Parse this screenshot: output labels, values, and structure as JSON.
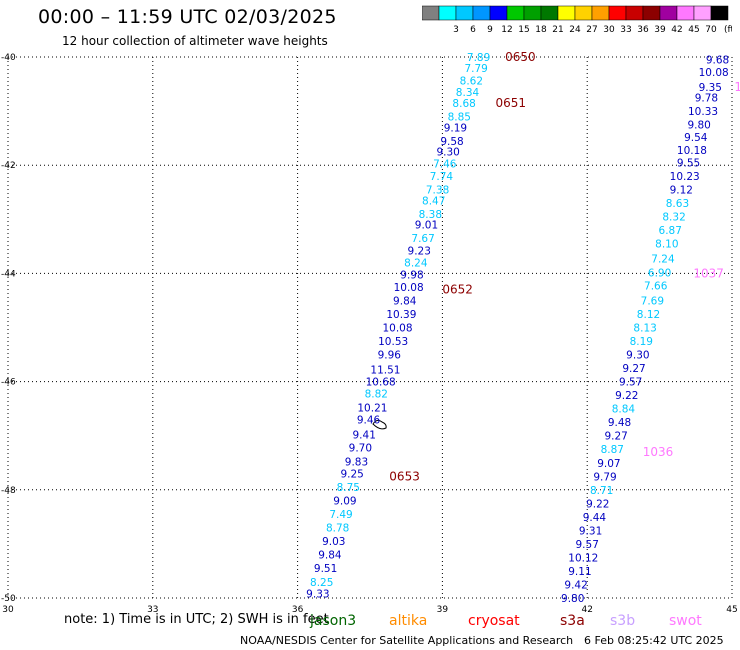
{
  "header": {
    "title": "00:00 – 11:59 UTC 02/03/2025",
    "subtitle": "12 hour collection of altimeter wave heights"
  },
  "legend": {
    "unit": "(ft)",
    "stops": [
      {
        "label": "",
        "color": "#808080"
      },
      {
        "label": "3",
        "color": "#00ffff"
      },
      {
        "label": "6",
        "color": "#00c8ff"
      },
      {
        "label": "9",
        "color": "#0096ff"
      },
      {
        "label": "12",
        "color": "#0000ff"
      },
      {
        "label": "15",
        "color": "#00c800"
      },
      {
        "label": "18",
        "color": "#00a000"
      },
      {
        "label": "21",
        "color": "#007800"
      },
      {
        "label": "24",
        "color": "#ffff00"
      },
      {
        "label": "27",
        "color": "#ffd200"
      },
      {
        "label": "30",
        "color": "#ffa000"
      },
      {
        "label": "33",
        "color": "#ff0000"
      },
      {
        "label": "36",
        "color": "#c80000"
      },
      {
        "label": "39",
        "color": "#8c0000"
      },
      {
        "label": "42",
        "color": "#a000a0"
      },
      {
        "label": "45",
        "color": "#ff78ff"
      },
      {
        "label": "70",
        "color": "#ffa0ff"
      },
      {
        "label": "",
        "color": "#000000"
      }
    ]
  },
  "map": {
    "lon_range": [
      30,
      45
    ],
    "lat_range": [
      -50,
      -40
    ],
    "lon_ticks": [
      "30",
      "33",
      "36",
      "39",
      "42",
      "45"
    ],
    "lat_ticks": [
      "-40",
      "-42",
      "-44",
      "-46",
      "-48",
      "-50"
    ],
    "tracks": [
      {
        "color": "#00c8ff",
        "alt_color": "#0000c0",
        "points": [
          {
            "lon": 39.75,
            "lat": -40.0,
            "v": "7.89",
            "c": 0
          },
          {
            "lon": 39.7,
            "lat": -40.2,
            "v": "7.79",
            "c": 0
          },
          {
            "lon": 39.6,
            "lat": -40.43,
            "v": "8.62",
            "c": 0
          },
          {
            "lon": 39.52,
            "lat": -40.65,
            "v": "8.34",
            "c": 0
          },
          {
            "lon": 39.45,
            "lat": -40.85,
            "v": "8.68",
            "c": 0
          },
          {
            "lon": 39.35,
            "lat": -41.1,
            "v": "8.85",
            "c": 0
          },
          {
            "lon": 39.27,
            "lat": -41.3,
            "v": "9.19",
            "c": 1
          },
          {
            "lon": 39.2,
            "lat": -41.55,
            "v": "9.58",
            "c": 1
          },
          {
            "lon": 39.12,
            "lat": -41.75,
            "v": "9.30",
            "c": 1
          },
          {
            "lon": 39.05,
            "lat": -41.97,
            "v": "7.46",
            "c": 0
          },
          {
            "lon": 38.98,
            "lat": -42.2,
            "v": "7.74",
            "c": 0
          },
          {
            "lon": 38.9,
            "lat": -42.45,
            "v": "7.38",
            "c": 0
          },
          {
            "lon": 38.82,
            "lat": -42.65,
            "v": "8.47",
            "c": 0
          },
          {
            "lon": 38.75,
            "lat": -42.9,
            "v": "8.38",
            "c": 0
          },
          {
            "lon": 38.67,
            "lat": -43.1,
            "v": "9.01",
            "c": 1
          },
          {
            "lon": 38.6,
            "lat": -43.35,
            "v": "7.67",
            "c": 0
          },
          {
            "lon": 38.52,
            "lat": -43.58,
            "v": "9.23",
            "c": 1
          },
          {
            "lon": 38.45,
            "lat": -43.8,
            "v": "8.24",
            "c": 0
          },
          {
            "lon": 38.37,
            "lat": -44.02,
            "v": "9.98",
            "c": 1
          },
          {
            "lon": 38.3,
            "lat": -44.25,
            "v": "10.08",
            "c": 1
          },
          {
            "lon": 38.22,
            "lat": -44.5,
            "v": "9.84",
            "c": 1
          },
          {
            "lon": 38.15,
            "lat": -44.75,
            "v": "10.39",
            "c": 1
          },
          {
            "lon": 38.07,
            "lat": -45.0,
            "v": "10.08",
            "c": 1
          },
          {
            "lon": 37.98,
            "lat": -45.25,
            "v": "10.53",
            "c": 1
          },
          {
            "lon": 37.9,
            "lat": -45.5,
            "v": "9.96",
            "c": 1
          },
          {
            "lon": 37.82,
            "lat": -45.78,
            "v": "11.51",
            "c": 1
          },
          {
            "lon": 37.72,
            "lat": -46.0,
            "v": "10.68",
            "c": 1
          },
          {
            "lon": 37.63,
            "lat": -46.22,
            "v": "8.82",
            "c": 0
          },
          {
            "lon": 37.55,
            "lat": -46.48,
            "v": "10.21",
            "c": 1
          },
          {
            "lon": 37.47,
            "lat": -46.7,
            "v": "9.46",
            "c": 1
          },
          {
            "lon": 37.38,
            "lat": -46.98,
            "v": "9.41",
            "c": 1
          },
          {
            "lon": 37.3,
            "lat": -47.22,
            "v": "9.70",
            "c": 1
          },
          {
            "lon": 37.22,
            "lat": -47.48,
            "v": "9.83",
            "c": 1
          },
          {
            "lon": 37.13,
            "lat": -47.7,
            "v": "9.25",
            "c": 1
          },
          {
            "lon": 37.05,
            "lat": -47.95,
            "v": "8.75",
            "c": 0
          },
          {
            "lon": 36.98,
            "lat": -48.2,
            "v": "9.09",
            "c": 1
          },
          {
            "lon": 36.9,
            "lat": -48.45,
            "v": "7.49",
            "c": 0
          },
          {
            "lon": 36.83,
            "lat": -48.7,
            "v": "8.78",
            "c": 0
          },
          {
            "lon": 36.75,
            "lat": -48.95,
            "v": "9.03",
            "c": 1
          },
          {
            "lon": 36.67,
            "lat": -49.2,
            "v": "9.84",
            "c": 1
          },
          {
            "lon": 36.58,
            "lat": -49.45,
            "v": "9.51",
            "c": 1
          },
          {
            "lon": 36.5,
            "lat": -49.7,
            "v": "8.25",
            "c": 0
          },
          {
            "lon": 36.42,
            "lat": -49.92,
            "v": "9.33",
            "c": 1
          }
        ]
      },
      {
        "color": "#00c8ff",
        "alt_color": "#0000c0",
        "points": [
          {
            "lon": 44.7,
            "lat": -40.05,
            "v": "9.68",
            "c": 1
          },
          {
            "lon": 44.62,
            "lat": -40.28,
            "v": "10.08",
            "c": 1
          },
          {
            "lon": 44.55,
            "lat": -40.55,
            "v": "9.35",
            "c": 1
          },
          {
            "lon": 44.47,
            "lat": -40.75,
            "v": "9.78",
            "c": 1
          },
          {
            "lon": 44.4,
            "lat": -41.0,
            "v": "10.33",
            "c": 1
          },
          {
            "lon": 44.32,
            "lat": -41.25,
            "v": "9.80",
            "c": 1
          },
          {
            "lon": 44.25,
            "lat": -41.48,
            "v": "9.54",
            "c": 1
          },
          {
            "lon": 44.17,
            "lat": -41.72,
            "v": "10.18",
            "c": 1
          },
          {
            "lon": 44.1,
            "lat": -41.95,
            "v": "9.55",
            "c": 1
          },
          {
            "lon": 44.02,
            "lat": -42.2,
            "v": "10.23",
            "c": 1
          },
          {
            "lon": 43.95,
            "lat": -42.45,
            "v": "9.12",
            "c": 1
          },
          {
            "lon": 43.87,
            "lat": -42.7,
            "v": "8.63",
            "c": 0
          },
          {
            "lon": 43.8,
            "lat": -42.95,
            "v": "8.32",
            "c": 0
          },
          {
            "lon": 43.72,
            "lat": -43.2,
            "v": "6.87",
            "c": 0
          },
          {
            "lon": 43.65,
            "lat": -43.45,
            "v": "8.10",
            "c": 0
          },
          {
            "lon": 43.57,
            "lat": -43.72,
            "v": "7.24",
            "c": 0
          },
          {
            "lon": 43.5,
            "lat": -43.98,
            "v": "6.90",
            "c": 0
          },
          {
            "lon": 43.42,
            "lat": -44.22,
            "v": "7.66",
            "c": 0
          },
          {
            "lon": 43.35,
            "lat": -44.5,
            "v": "7.69",
            "c": 0
          },
          {
            "lon": 43.27,
            "lat": -44.75,
            "v": "8.12",
            "c": 0
          },
          {
            "lon": 43.2,
            "lat": -45.0,
            "v": "8.13",
            "c": 0
          },
          {
            "lon": 43.12,
            "lat": -45.25,
            "v": "8.19",
            "c": 0
          },
          {
            "lon": 43.05,
            "lat": -45.5,
            "v": "9.30",
            "c": 1
          },
          {
            "lon": 42.97,
            "lat": -45.75,
            "v": "9.27",
            "c": 1
          },
          {
            "lon": 42.9,
            "lat": -46.0,
            "v": "9.57",
            "c": 1
          },
          {
            "lon": 42.82,
            "lat": -46.25,
            "v": "9.22",
            "c": 1
          },
          {
            "lon": 42.75,
            "lat": -46.5,
            "v": "8.84",
            "c": 0
          },
          {
            "lon": 42.67,
            "lat": -46.75,
            "v": "9.48",
            "c": 1
          },
          {
            "lon": 42.6,
            "lat": -47.0,
            "v": "9.27",
            "c": 1
          },
          {
            "lon": 42.52,
            "lat": -47.25,
            "v": "8.87",
            "c": 0
          },
          {
            "lon": 42.45,
            "lat": -47.5,
            "v": "9.07",
            "c": 1
          },
          {
            "lon": 42.37,
            "lat": -47.75,
            "v": "9.79",
            "c": 1
          },
          {
            "lon": 42.3,
            "lat": -48.0,
            "v": "8.71",
            "c": 0
          },
          {
            "lon": 42.22,
            "lat": -48.25,
            "v": "9.22",
            "c": 1
          },
          {
            "lon": 42.15,
            "lat": -48.5,
            "v": "9.44",
            "c": 1
          },
          {
            "lon": 42.07,
            "lat": -48.75,
            "v": "9.31",
            "c": 1
          },
          {
            "lon": 42.0,
            "lat": -49.0,
            "v": "9.57",
            "c": 1
          },
          {
            "lon": 41.92,
            "lat": -49.25,
            "v": "10.12",
            "c": 1
          },
          {
            "lon": 41.85,
            "lat": -49.5,
            "v": "9.11",
            "c": 1
          },
          {
            "lon": 41.77,
            "lat": -49.75,
            "v": "9.42",
            "c": 1
          },
          {
            "lon": 41.7,
            "lat": -50.0,
            "v": "9.80",
            "c": 1
          }
        ]
      }
    ],
    "time_labels": [
      {
        "lon": 40.3,
        "lat": -40.0,
        "text": "0650",
        "color": "#8c0000"
      },
      {
        "lon": 40.1,
        "lat": -40.85,
        "text": "0651",
        "color": "#8c0000"
      },
      {
        "lon": 39.0,
        "lat": -44.3,
        "text": "0652",
        "color": "#8c0000"
      },
      {
        "lon": 37.9,
        "lat": -47.75,
        "text": "0653",
        "color": "#8c0000"
      },
      {
        "lon": 44.2,
        "lat": -44.0,
        "text": "1037",
        "color": "#ff78ff"
      },
      {
        "lon": 43.15,
        "lat": -47.3,
        "text": "1036",
        "color": "#ff78ff"
      },
      {
        "lon": 45.05,
        "lat": -40.55,
        "text": "1",
        "color": "#ff78ff"
      }
    ]
  },
  "note": "note:  1) Time is in UTC; 2) SWH is in feet",
  "missions": [
    {
      "name": "jason3",
      "color": "#006400"
    },
    {
      "name": "altika",
      "color": "#ff8c00"
    },
    {
      "name": "cryosat",
      "color": "#ff0000"
    },
    {
      "name": "s3a",
      "color": "#8c0000"
    },
    {
      "name": "s3b",
      "color": "#c8a0ff"
    },
    {
      "name": "swot",
      "color": "#ff78ff"
    }
  ],
  "footer": "NOAA/NESDIS Center for Satellite Applications and Research",
  "timestamp": "6 Feb 08:25:42 UTC 2025"
}
